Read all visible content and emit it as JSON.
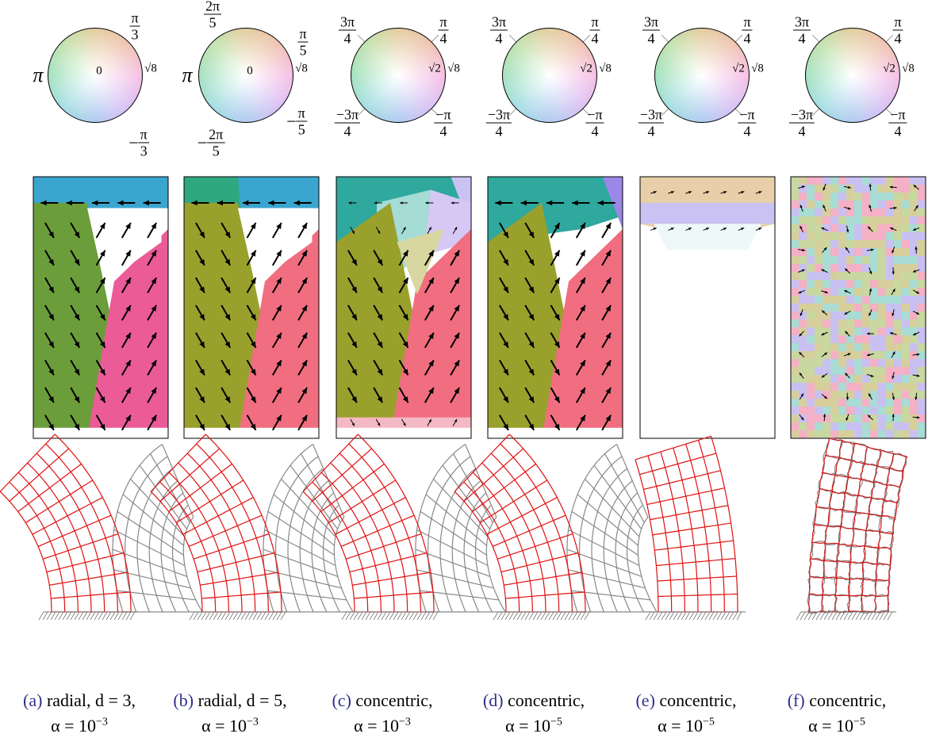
{
  "panels": [
    {
      "tag": "(a)",
      "caption": "radial, d = 3,",
      "alpha": {
        "base": "α = 10",
        "exp": "−3"
      },
      "wheel": [
        {
          "num": "π",
          "den": "3"
        },
        {
          "text": "π"
        },
        {
          "sign": "−",
          "num": "π",
          "den": "3"
        },
        {
          "text": "0"
        },
        {
          "text": "√8"
        }
      ]
    },
    {
      "tag": "(b)",
      "caption": "radial, d = 5,",
      "alpha": {
        "base": "α = 10",
        "exp": "−3"
      },
      "wheel": [
        {
          "num": "2π",
          "den": "5"
        },
        {
          "num": "π",
          "den": "5"
        },
        {
          "text": "π"
        },
        {
          "sign": "−",
          "num": "π",
          "den": "5"
        },
        {
          "sign": "−",
          "num": "2π",
          "den": "5"
        },
        {
          "text": "0"
        },
        {
          "text": "√8"
        }
      ]
    },
    {
      "tag": "(c)",
      "caption": "concentric,",
      "alpha": {
        "base": "α = 10",
        "exp": "−3"
      },
      "wheel": [
        {
          "num": "3π",
          "den": "4"
        },
        {
          "num": "π",
          "den": "4"
        },
        {
          "num": "−3π",
          "den": "4"
        },
        {
          "num": "−π",
          "den": "4"
        },
        {
          "text": "√2"
        },
        {
          "text": "√8"
        }
      ]
    },
    {
      "tag": "(d)",
      "caption": "concentric,",
      "alpha": {
        "base": "α = 10",
        "exp": "−5"
      },
      "wheel": [
        {
          "num": "3π",
          "den": "4"
        },
        {
          "num": "π",
          "den": "4"
        },
        {
          "num": "−3π",
          "den": "4"
        },
        {
          "num": "−π",
          "den": "4"
        },
        {
          "text": "√2"
        },
        {
          "text": "√8"
        }
      ]
    },
    {
      "tag": "(e)",
      "caption": "concentric,",
      "alpha": {
        "base": "α = 10",
        "exp": "−5"
      },
      "wheel": [
        {
          "num": "3π",
          "den": "4"
        },
        {
          "num": "π",
          "den": "4"
        },
        {
          "num": "−3π",
          "den": "4"
        },
        {
          "num": "−π",
          "den": "4"
        },
        {
          "text": "√2"
        },
        {
          "text": "√8"
        }
      ]
    },
    {
      "tag": "(f)",
      "caption": "concentric,",
      "alpha": {
        "base": "α = 10",
        "exp": "−5"
      },
      "wheel": [
        {
          "num": "3π",
          "den": "4"
        },
        {
          "num": "π",
          "den": "4"
        },
        {
          "num": "−3π",
          "den": "4"
        },
        {
          "num": "−π",
          "den": "4"
        },
        {
          "text": "√2"
        },
        {
          "text": "√8"
        }
      ]
    }
  ]
}
